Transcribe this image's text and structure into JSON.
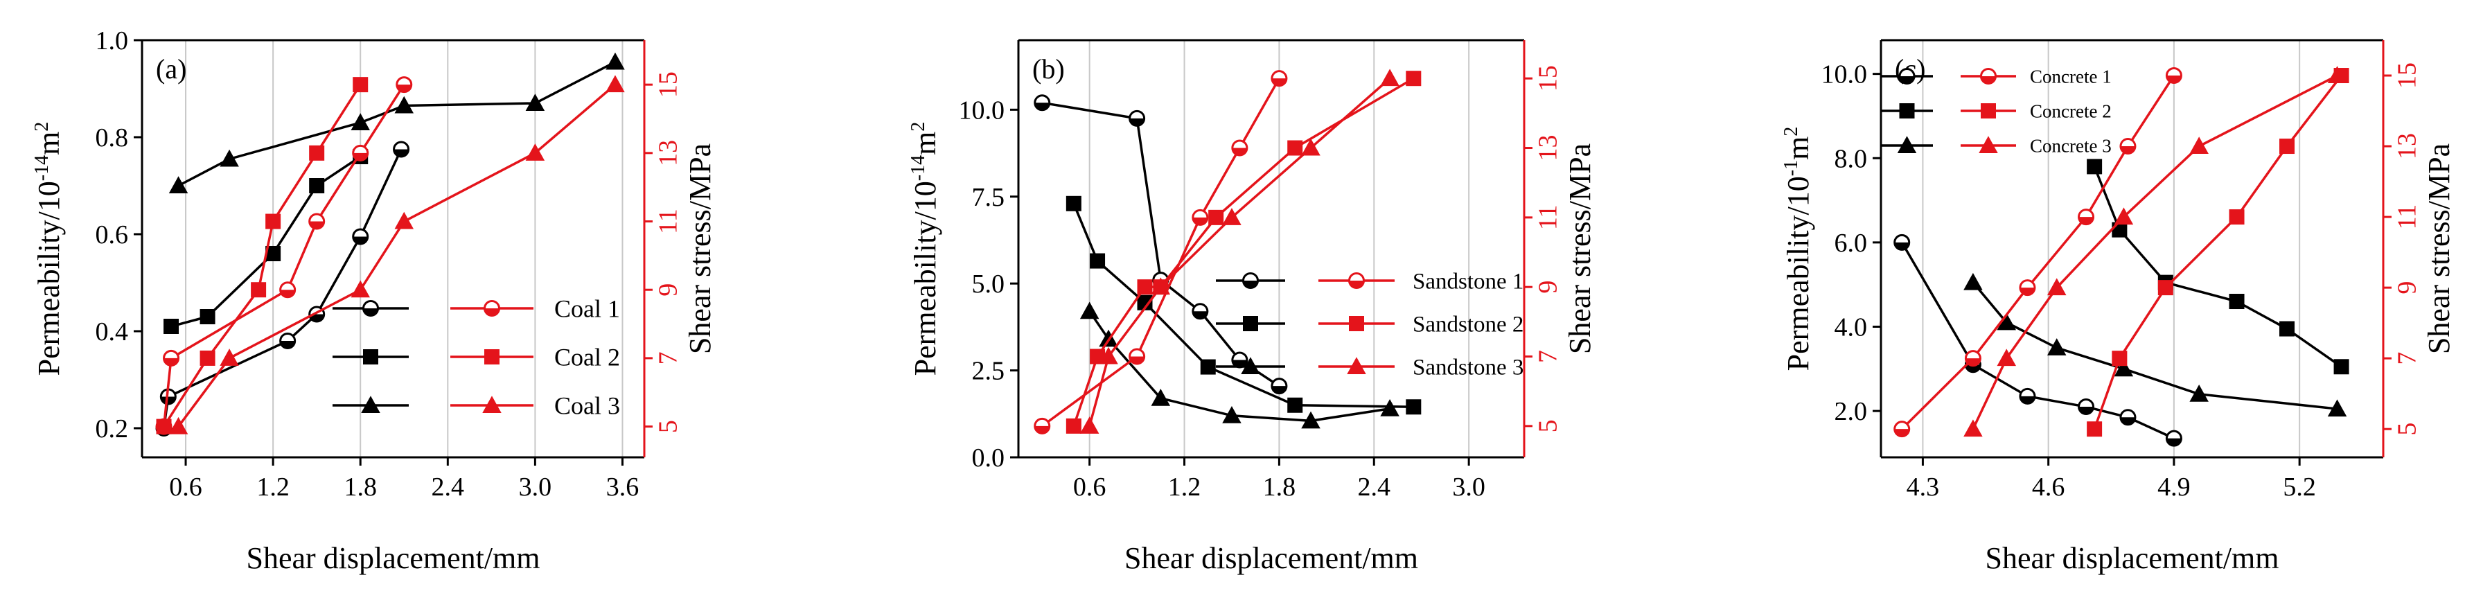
{
  "colors": {
    "left_axis": "#000000",
    "right_axis": "#e4141b",
    "grid": "#c8c8c8"
  },
  "chart_data": [
    {
      "type": "line",
      "panel_label": "(a)",
      "xlabel": "Shear displacement/mm",
      "ylabel_left": "Permeability/10",
      "ylabel_left_exp": "-14",
      "ylabel_left_unit": "m",
      "ylabel_left_unit_exp": "2",
      "ylabel_right": "Shear stress/MPa",
      "xlim": [
        0.3,
        3.75
      ],
      "ylim_left": [
        0.14,
        1.0
      ],
      "ylim_right": [
        4.1,
        16.3
      ],
      "xticks": [
        0.6,
        1.2,
        1.8,
        2.4,
        3.0,
        3.6
      ],
      "xtick_labels": [
        "0.6",
        "1.2",
        "1.8",
        "2.4",
        "3.0",
        "3.6"
      ],
      "yticks_left": [
        0.2,
        0.4,
        0.6,
        0.8,
        1.0
      ],
      "ytick_labels_left": [
        "0.2",
        "0.4",
        "0.6",
        "0.8",
        "1.0"
      ],
      "yticks_right": [
        5,
        7,
        9,
        11,
        13,
        15
      ],
      "ytick_labels_right": [
        "5",
        "7",
        "9",
        "11",
        "13",
        "15"
      ],
      "grid": true,
      "legend_position": "bottom-right",
      "series": [
        {
          "name": "Coal 1",
          "axis": "left",
          "marker": "circle",
          "x": [
            0.45,
            0.48,
            1.3,
            1.5,
            1.8,
            2.08
          ],
          "y": [
            0.2,
            0.265,
            0.38,
            0.435,
            0.595,
            0.775
          ]
        },
        {
          "name": "Coal 2",
          "axis": "left",
          "marker": "square",
          "x": [
            0.5,
            0.75,
            1.2,
            1.5,
            1.8
          ],
          "y": [
            0.41,
            0.43,
            0.56,
            0.7,
            0.76
          ]
        },
        {
          "name": "Coal 3",
          "axis": "left",
          "marker": "triangle",
          "x": [
            0.55,
            0.9,
            1.8,
            2.1,
            3.0,
            3.55
          ],
          "y": [
            0.7,
            0.755,
            0.83,
            0.865,
            0.87,
            0.955
          ]
        },
        {
          "name": "Coal 1",
          "axis": "right",
          "marker": "circle",
          "x": [
            0.45,
            0.5,
            1.3,
            1.5,
            1.8,
            2.1
          ],
          "y": [
            5,
            7,
            9,
            11,
            13,
            15
          ]
        },
        {
          "name": "Coal 2",
          "axis": "right",
          "marker": "square",
          "x": [
            0.45,
            0.75,
            1.1,
            1.2,
            1.5,
            1.8
          ],
          "y": [
            5,
            7,
            9,
            11,
            13,
            15
          ]
        },
        {
          "name": "Coal 3",
          "axis": "right",
          "marker": "triangle",
          "x": [
            0.55,
            0.9,
            1.8,
            2.1,
            3.0,
            3.55
          ],
          "y": [
            5,
            7,
            9,
            11,
            13,
            15
          ]
        }
      ],
      "legend": [
        {
          "label": "Coal 1",
          "marker": "circle"
        },
        {
          "label": "Coal 2",
          "marker": "square"
        },
        {
          "label": "Coal 3",
          "marker": "triangle"
        }
      ]
    },
    {
      "type": "line",
      "panel_label": "(b)",
      "xlabel": "Shear displacement/mm",
      "ylabel_left": "Permeability/10",
      "ylabel_left_exp": "-14",
      "ylabel_left_unit": "m",
      "ylabel_left_unit_exp": "2",
      "ylabel_right": "Shear stress/MPa",
      "xlim": [
        0.15,
        3.35
      ],
      "ylim_left": [
        0,
        12.0
      ],
      "ylim_right": [
        4.1,
        16.1
      ],
      "xticks": [
        0.6,
        1.2,
        1.8,
        2.4,
        3.0
      ],
      "xtick_labels": [
        "0.6",
        "1.2",
        "1.8",
        "2.4",
        "3.0"
      ],
      "yticks_left": [
        0.0,
        2.5,
        5.0,
        7.5,
        10.0
      ],
      "ytick_labels_left": [
        "0.0",
        "2.5",
        "5.0",
        "7.5",
        "10.0"
      ],
      "yticks_right": [
        5,
        7,
        9,
        11,
        13,
        15
      ],
      "ytick_labels_right": [
        "5",
        "7",
        "9",
        "11",
        "13",
        "15"
      ],
      "grid": true,
      "legend_position": "center-right",
      "series": [
        {
          "name": "Sandstone 1",
          "axis": "left",
          "marker": "circle",
          "x": [
            0.3,
            0.9,
            1.05,
            1.3,
            1.55,
            1.8
          ],
          "y": [
            10.2,
            9.75,
            5.1,
            4.2,
            2.8,
            2.05
          ]
        },
        {
          "name": "Sandstone 2",
          "axis": "left",
          "marker": "square",
          "x": [
            0.5,
            0.65,
            0.95,
            1.35,
            1.9,
            2.65
          ],
          "y": [
            7.3,
            5.65,
            4.45,
            2.6,
            1.5,
            1.45
          ]
        },
        {
          "name": "Sandstone 3",
          "axis": "left",
          "marker": "triangle",
          "x": [
            0.6,
            0.72,
            1.05,
            1.5,
            2.0,
            2.5
          ],
          "y": [
            4.2,
            3.4,
            1.7,
            1.2,
            1.05,
            1.4
          ]
        },
        {
          "name": "Sandstone 1",
          "axis": "right",
          "marker": "circle",
          "x": [
            0.3,
            0.9,
            1.3,
            1.55,
            1.8
          ],
          "y": [
            5,
            7,
            11,
            13,
            15
          ]
        },
        {
          "name": "Sandstone 2",
          "axis": "right",
          "marker": "square",
          "x": [
            0.5,
            0.65,
            0.95,
            1.05,
            1.4,
            1.9,
            2.65
          ],
          "y": [
            5,
            7,
            9,
            9,
            11,
            13,
            15
          ]
        },
        {
          "name": "Sandstone 3",
          "axis": "right",
          "marker": "triangle",
          "x": [
            0.6,
            0.72,
            1.05,
            1.5,
            2.0,
            2.5
          ],
          "y": [
            5,
            7,
            9,
            11,
            13,
            15
          ]
        }
      ],
      "legend": [
        {
          "label": "Sandstone 1",
          "marker": "circle"
        },
        {
          "label": "Sandstone 2",
          "marker": "square"
        },
        {
          "label": "Sandstone 3",
          "marker": "triangle"
        }
      ]
    },
    {
      "type": "line",
      "panel_label": "(c)",
      "xlabel": "Shear displacement/mm",
      "ylabel_left": "Permeability/10",
      "ylabel_left_exp": "-1",
      "ylabel_left_unit": "m",
      "ylabel_left_unit_exp": "2",
      "ylabel_right": "Shear stress/MPa",
      "xlim": [
        4.2,
        5.4
      ],
      "ylim_left": [
        0.9,
        10.8
      ],
      "ylim_right": [
        4.2,
        16.0
      ],
      "xticks": [
        4.3,
        4.6,
        4.9,
        5.2
      ],
      "xtick_labels": [
        "4.3",
        "4.6",
        "4.9",
        "5.2"
      ],
      "yticks_left": [
        2.0,
        4.0,
        6.0,
        8.0,
        10.0
      ],
      "ytick_labels_left": [
        "2.0",
        "4.0",
        "6.0",
        "8.0",
        "10.0"
      ],
      "yticks_right": [
        5,
        7,
        9,
        11,
        13,
        15
      ],
      "ytick_labels_right": [
        "5",
        "7",
        "9",
        "11",
        "13",
        "15"
      ],
      "grid": true,
      "legend_position": "top-left",
      "series": [
        {
          "name": "Concrete 1",
          "axis": "left",
          "marker": "circle",
          "x": [
            4.25,
            4.42,
            4.55,
            4.69,
            4.79,
            4.9
          ],
          "y": [
            6.0,
            3.1,
            2.35,
            2.1,
            1.85,
            1.35
          ]
        },
        {
          "name": "Concrete 2",
          "axis": "left",
          "marker": "square",
          "x": [
            4.71,
            4.77,
            4.88,
            5.05,
            5.17,
            5.3
          ],
          "y": [
            7.8,
            6.3,
            5.05,
            4.6,
            3.95,
            3.05
          ]
        },
        {
          "name": "Concrete 3",
          "axis": "left",
          "marker": "triangle",
          "x": [
            4.42,
            4.5,
            4.62,
            4.78,
            4.96,
            5.29
          ],
          "y": [
            5.05,
            4.1,
            3.5,
            3.0,
            2.4,
            2.05
          ]
        },
        {
          "name": "Concrete 1",
          "axis": "right",
          "marker": "circle",
          "x": [
            4.25,
            4.42,
            4.55,
            4.69,
            4.79,
            4.9
          ],
          "y": [
            5,
            7,
            9,
            11,
            13,
            15
          ]
        },
        {
          "name": "Concrete 2",
          "axis": "right",
          "marker": "square",
          "x": [
            4.71,
            4.77,
            4.88,
            5.05,
            5.17,
            5.3
          ],
          "y": [
            5,
            7,
            9,
            11,
            13,
            15
          ]
        },
        {
          "name": "Concrete 3",
          "axis": "right",
          "marker": "triangle",
          "x": [
            4.42,
            4.5,
            4.62,
            4.78,
            4.96,
            5.29
          ],
          "y": [
            5,
            7,
            9,
            11,
            13,
            15
          ]
        }
      ],
      "legend": [
        {
          "label": "Concrete 1",
          "marker": "circle"
        },
        {
          "label": "Concrete 2",
          "marker": "square"
        },
        {
          "label": "Concrete 3",
          "marker": "triangle"
        }
      ]
    }
  ]
}
